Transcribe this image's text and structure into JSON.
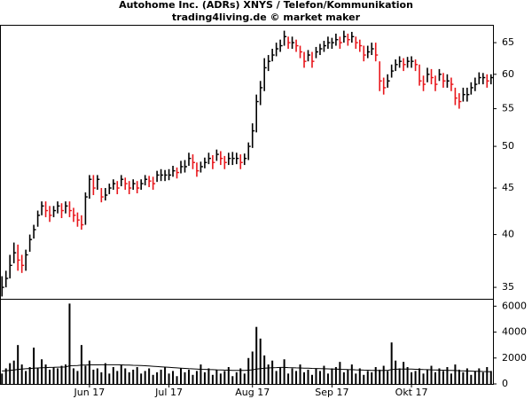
{
  "chart_data": [
    {
      "type": "ohlc",
      "title": "Autohome Inc. (ADRs) XNYS / Telefon/Kommunikation",
      "subtitle": "trading4living.de © market maker",
      "log_scale": true,
      "ylim": [
        34,
        68
      ],
      "yticks": [
        35,
        40,
        45,
        50,
        55,
        60,
        65
      ],
      "xlim": [
        -0.5,
        123.5
      ],
      "up_color": "#000000",
      "down_color": "#e8161b",
      "close": [
        35,
        35.8,
        37,
        38.2,
        37.5,
        37,
        38,
        39.5,
        40.5,
        42,
        43,
        42.5,
        42,
        42.5,
        43,
        42.5,
        43,
        42.5,
        42,
        41.5,
        41,
        44,
        46,
        45,
        46,
        44,
        44.2,
        45,
        45.5,
        45,
        46,
        45.5,
        45,
        45.5,
        45,
        45.5,
        46,
        45.8,
        45.5,
        46.5,
        46.5,
        46.5,
        46.5,
        47,
        46.8,
        47.5,
        47.5,
        48.5,
        48,
        47,
        47.5,
        48,
        48.5,
        48,
        49,
        48.5,
        48,
        48.5,
        48.5,
        48.5,
        48,
        48.5,
        50,
        52,
        56,
        58,
        61,
        62,
        63,
        64,
        64.5,
        66,
        65,
        65,
        64.5,
        63.5,
        62,
        63,
        62,
        63.5,
        64,
        64.5,
        65,
        65,
        65.5,
        65,
        66,
        65.5,
        66,
        65,
        64.5,
        63,
        63.5,
        64,
        63,
        59,
        58,
        59,
        60.5,
        61.5,
        62,
        61.5,
        62,
        62,
        61.5,
        59,
        58.5,
        60,
        59.5,
        58.5,
        60,
        59,
        59,
        58.5,
        56.5,
        56,
        57,
        57,
        58,
        58.5,
        59.5,
        59.5,
        59,
        59.5
      ],
      "high": [
        36,
        36.5,
        38,
        39.2,
        39,
        38,
        38.5,
        40,
        41,
        42.5,
        43.5,
        43.5,
        43,
        43,
        43.5,
        43.3,
        43.5,
        43.5,
        42.8,
        42.3,
        42,
        44.5,
        46.5,
        46.5,
        46.5,
        45,
        45,
        45.5,
        46,
        45.8,
        46.5,
        46.2,
        45.8,
        46,
        45.8,
        46,
        46.5,
        46.4,
        46.3,
        47,
        47.2,
        47.1,
        47.2,
        47.6,
        47.4,
        48.2,
        48.3,
        49.2,
        49,
        48,
        48.1,
        48.6,
        49.2,
        48.9,
        49.6,
        49.4,
        48.8,
        49.2,
        49.3,
        49.2,
        49,
        49.1,
        50.5,
        53,
        57,
        59,
        62.5,
        63,
        64,
        65,
        65.5,
        67,
        66,
        66,
        65.5,
        64.5,
        63.5,
        63.8,
        63.5,
        64.3,
        64.8,
        65.3,
        66,
        65.8,
        66.5,
        66,
        67,
        66.5,
        66.8,
        66,
        65.5,
        64.5,
        64.5,
        65,
        65,
        62,
        59.5,
        60,
        61.5,
        62.3,
        62.8,
        62.5,
        62.7,
        62.8,
        62.3,
        61.5,
        59.8,
        61,
        60.8,
        59.8,
        60.8,
        60.2,
        60,
        59.5,
        58,
        57.2,
        58,
        58,
        58.8,
        59.5,
        60.3,
        60.2,
        60,
        60
      ],
      "low": [
        34.2,
        35,
        35.8,
        37.2,
        36.5,
        36.3,
        36.5,
        38.3,
        39.6,
        40.8,
        42,
        41.8,
        41.3,
        41.8,
        42.2,
        41.7,
        42.2,
        41.8,
        41.3,
        40.8,
        40.5,
        41,
        43.8,
        44.2,
        44.8,
        43.4,
        43.6,
        44.3,
        44.8,
        44.3,
        45.2,
        44.8,
        44.3,
        44.8,
        44.4,
        44.8,
        45.3,
        45.1,
        44.8,
        45.7,
        45.8,
        45.8,
        45.9,
        46.3,
        46.1,
        46.7,
        46.8,
        47.6,
        47.2,
        46.3,
        46.8,
        47.3,
        47.8,
        47.2,
        48.2,
        47.7,
        47.2,
        47.7,
        47.7,
        47.8,
        47.2,
        47.7,
        48.3,
        49.8,
        51.8,
        55.5,
        57.5,
        60.5,
        62,
        62.8,
        63.5,
        64.5,
        64,
        64,
        63.5,
        62.5,
        61,
        62,
        61,
        62.5,
        63,
        63.5,
        64,
        64,
        64.5,
        64,
        65,
        64.5,
        65,
        64,
        63.5,
        62,
        62.5,
        63,
        62,
        57.5,
        57,
        58,
        59.5,
        60.5,
        61,
        60.5,
        61,
        61,
        60.5,
        58.3,
        57.5,
        58.8,
        58.5,
        57.5,
        59,
        58,
        58,
        57.5,
        55.5,
        55,
        56,
        56,
        57,
        57.5,
        58.5,
        58.5,
        58,
        58.5
      ]
    },
    {
      "type": "bar",
      "ylim": [
        0,
        6500
      ],
      "yticks": [
        0,
        2000,
        4000,
        6000
      ],
      "xlim": [
        -0.5,
        123.5
      ],
      "xticks": [
        {
          "value": 22,
          "label": "Jun 17"
        },
        {
          "value": 42,
          "label": "Jul 17"
        },
        {
          "value": 63,
          "label": "Aug 17"
        },
        {
          "value": 83,
          "label": "Sep 17"
        },
        {
          "value": 103,
          "label": "Okt 17"
        }
      ],
      "color": "#000000",
      "ma_color": "#000000",
      "values": [
        800,
        1200,
        1600,
        1800,
        3000,
        1500,
        1000,
        1300,
        2800,
        1200,
        1900,
        1500,
        1100,
        1300,
        1200,
        1400,
        1500,
        6200,
        1200,
        1000,
        3000,
        1400,
        1800,
        1100,
        1200,
        900,
        1600,
        800,
        1300,
        1000,
        1500,
        1200,
        900,
        1100,
        1300,
        800,
        1000,
        1200,
        700,
        900,
        1100,
        1300,
        800,
        1000,
        600,
        1200,
        900,
        1100,
        700,
        1000,
        1500,
        900,
        1200,
        700,
        1100,
        800,
        1000,
        1300,
        600,
        900,
        1200,
        800,
        2000,
        2500,
        4400,
        3500,
        2200,
        1500,
        1800,
        1000,
        1300,
        1900,
        800,
        1200,
        1000,
        1500,
        900,
        1100,
        700,
        1200,
        1000,
        1400,
        800,
        1200,
        1300,
        1700,
        900,
        1100,
        1500,
        800,
        1200,
        700,
        1000,
        900,
        1300,
        1100,
        1400,
        1000,
        3200,
        1800,
        1200,
        1700,
        1300,
        900,
        1000,
        1200,
        800,
        1100,
        1400,
        900,
        1200,
        1000,
        1300,
        800,
        1500,
        1100,
        900,
        1200,
        700,
        1000,
        1200,
        900,
        1300,
        1000
      ],
      "ma_values": [
        1000,
        1020,
        1050,
        1080,
        1120,
        1150,
        1170,
        1190,
        1210,
        1230,
        1250,
        1260,
        1270,
        1280,
        1290,
        1300,
        1310,
        1400,
        1410,
        1420,
        1450,
        1460,
        1470,
        1470,
        1470,
        1480,
        1480,
        1480,
        1480,
        1480,
        1470,
        1460,
        1450,
        1440,
        1430,
        1420,
        1400,
        1380,
        1360,
        1340,
        1320,
        1300,
        1280,
        1260,
        1240,
        1220,
        1200,
        1180,
        1160,
        1140,
        1130,
        1120,
        1110,
        1100,
        1090,
        1080,
        1070,
        1060,
        1050,
        1040,
        1040,
        1040,
        1060,
        1090,
        1140,
        1180,
        1210,
        1230,
        1250,
        1260,
        1270,
        1270,
        1260,
        1250,
        1240,
        1230,
        1220,
        1210,
        1200,
        1190,
        1180,
        1170,
        1160,
        1150,
        1140,
        1130,
        1120,
        1110,
        1100,
        1090,
        1080,
        1070,
        1060,
        1050,
        1040,
        1030,
        1040,
        1050,
        1110,
        1130,
        1140,
        1150,
        1150,
        1140,
        1130,
        1120,
        1110,
        1100,
        1090,
        1080,
        1070,
        1060,
        1050,
        1040,
        1030,
        1020,
        1010,
        1000,
        990,
        980,
        970,
        960,
        950,
        940
      ]
    }
  ]
}
